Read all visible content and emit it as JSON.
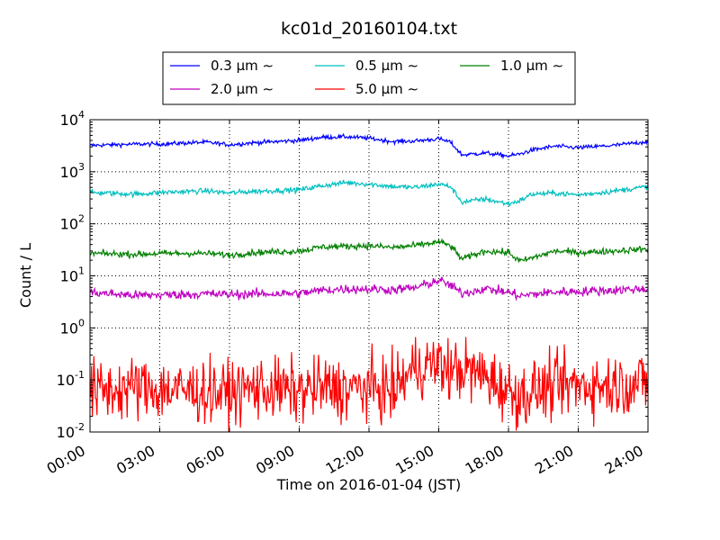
{
  "chart_data": {
    "type": "line",
    "title": "kc01d_20160104.txt",
    "xlabel": "Time on 2016-01-04 (JST)",
    "ylabel": "Count / L",
    "yscale": "log",
    "ylim": [
      0.01,
      10000
    ],
    "xlim": [
      "2016-01-04 00:00",
      "2016-01-05 00:00"
    ],
    "x_ticks": [
      "00:00",
      "03:00",
      "06:00",
      "09:00",
      "12:00",
      "15:00",
      "18:00",
      "21:00",
      "24:00"
    ],
    "y_ticks": [
      {
        "base": "10",
        "exp": "-2",
        "value": 0.01
      },
      {
        "base": "10",
        "exp": "-1",
        "value": 0.1
      },
      {
        "base": "10",
        "exp": "0",
        "value": 1
      },
      {
        "base": "10",
        "exp": "1",
        "value": 10
      },
      {
        "base": "10",
        "exp": "2",
        "value": 100
      },
      {
        "base": "10",
        "exp": "3",
        "value": 1000
      },
      {
        "base": "10",
        "exp": "4",
        "value": 10000
      }
    ],
    "grid": true,
    "legend_position": "top-center",
    "series": [
      {
        "name": "0.3 μm ∼",
        "color": "#0000ff",
        "noise": 0.02,
        "x": [
          "00:00",
          "02:00",
          "03:00",
          "05:00",
          "06:00",
          "07:00",
          "09:00",
          "10:00",
          "11:00",
          "12:00",
          "13:00",
          "14:00",
          "15:00",
          "15:30",
          "16:00",
          "17:00",
          "18:00",
          "18:30",
          "19:00",
          "20:00",
          "21:00",
          "22:30",
          "24:00"
        ],
        "y": [
          3200,
          3400,
          3400,
          3700,
          3300,
          3600,
          4000,
          4600,
          4700,
          4400,
          3800,
          3900,
          4300,
          3700,
          2100,
          2300,
          2000,
          2200,
          2600,
          3100,
          2900,
          3200,
          3800
        ]
      },
      {
        "name": "0.5 μm ∼",
        "color": "#00bfbf",
        "noise": 0.025,
        "x": [
          "00:00",
          "02:00",
          "03:00",
          "05:00",
          "06:00",
          "07:00",
          "09:00",
          "10:00",
          "11:00",
          "12:00",
          "13:00",
          "14:00",
          "15:00",
          "15:30",
          "16:00",
          "17:00",
          "18:00",
          "18:30",
          "19:00",
          "20:00",
          "21:00",
          "22:30",
          "24:00"
        ],
        "y": [
          400,
          370,
          400,
          430,
          390,
          420,
          450,
          540,
          620,
          580,
          520,
          500,
          580,
          520,
          260,
          300,
          240,
          280,
          370,
          390,
          360,
          420,
          520
        ]
      },
      {
        "name": "1.0 μm ∼",
        "color": "#008000",
        "noise": 0.03,
        "x": [
          "00:00",
          "02:00",
          "03:00",
          "05:00",
          "06:00",
          "07:00",
          "09:00",
          "10:00",
          "11:00",
          "12:00",
          "13:00",
          "14:00",
          "15:00",
          "15:30",
          "16:00",
          "17:00",
          "18:00",
          "18:30",
          "19:00",
          "20:00",
          "21:00",
          "22:30",
          "24:00"
        ],
        "y": [
          27,
          26,
          27,
          27,
          25,
          28,
          30,
          36,
          37,
          38,
          35,
          38,
          45,
          38,
          21,
          30,
          28,
          19,
          22,
          30,
          28,
          30,
          33
        ]
      },
      {
        "name": "2.0 μm ∼",
        "color": "#bf00bf",
        "noise": 0.045,
        "x": [
          "00:00",
          "02:00",
          "03:00",
          "05:00",
          "06:00",
          "07:00",
          "09:00",
          "10:00",
          "11:00",
          "12:00",
          "13:00",
          "14:00",
          "15:00",
          "15:30",
          "16:00",
          "17:00",
          "18:00",
          "18:30",
          "19:00",
          "20:00",
          "21:00",
          "22:30",
          "24:00"
        ],
        "y": [
          4.8,
          4.2,
          4.3,
          4.5,
          4.4,
          4.5,
          4.6,
          5.3,
          5.6,
          5.6,
          5.4,
          5.9,
          8.2,
          6.6,
          4.6,
          5.7,
          4.8,
          4.1,
          4.4,
          4.9,
          5.0,
          5.3,
          5.7
        ]
      },
      {
        "name": "5.0 μm ∼",
        "color": "#ff0000",
        "noise": 0.3,
        "x": [
          "00:00",
          "02:00",
          "03:00",
          "05:00",
          "06:00",
          "07:00",
          "09:00",
          "10:00",
          "11:00",
          "12:00",
          "13:00",
          "14:00",
          "15:00",
          "15:30",
          "16:00",
          "17:00",
          "18:00",
          "18:30",
          "19:00",
          "20:00",
          "21:00",
          "22:30",
          "24:00"
        ],
        "y": [
          0.06,
          0.07,
          0.065,
          0.06,
          0.055,
          0.07,
          0.06,
          0.07,
          0.065,
          0.07,
          0.06,
          0.18,
          0.2,
          0.15,
          0.16,
          0.12,
          0.06,
          0.05,
          0.06,
          0.075,
          0.08,
          0.08,
          0.09
        ]
      }
    ]
  }
}
